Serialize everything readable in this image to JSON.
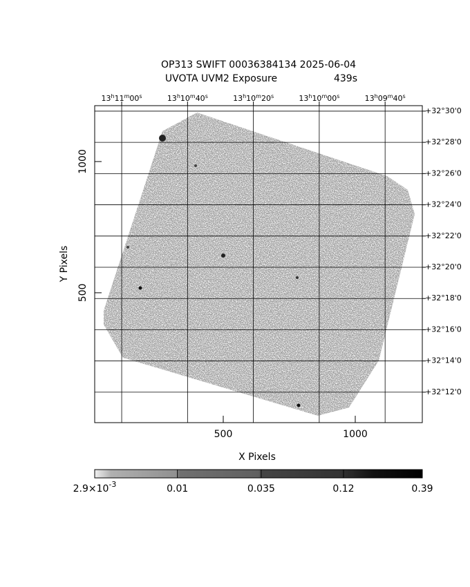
{
  "chart_data": {
    "type": "image",
    "title": "OP313 SWIFT 00036384134 2025-06-04",
    "subtitle": "UVOTA UVM2 Exposure",
    "exposure": "439s",
    "xlabel": "X Pixels",
    "ylabel": "Y Pixels",
    "xlim": [
      13,
      1254
    ],
    "xticks": [
      500,
      1000
    ],
    "ylim": [
      5,
      1213
    ],
    "yticks": [
      500,
      1000
    ],
    "x2lim": [
      47468.2,
      47368.7
    ],
    "x2ticks": [
      {
        "value": 47460,
        "label": "13h11m00s"
      },
      {
        "value": 47440,
        "label": "13h10m40s"
      },
      {
        "value": 47420,
        "label": "13h10m20s"
      },
      {
        "value": 47400,
        "label": "13h10m00s"
      },
      {
        "value": 47380,
        "label": "13h09m40s"
      }
    ],
    "y2lim": [
      1930.05,
      1950.35
    ],
    "y2ticks": [
      {
        "value": 1950,
        "label": "+32°30'0"
      },
      {
        "value": 1948,
        "label": "+32°28'0"
      },
      {
        "value": 1946,
        "label": "+32°26'0"
      },
      {
        "value": 1944,
        "label": "+32°24'0"
      },
      {
        "value": 1942,
        "label": "+32°22'0"
      },
      {
        "value": 1940,
        "label": "+32°20'0"
      },
      {
        "value": 1938,
        "label": "+32°18'0"
      },
      {
        "value": 1936,
        "label": "+32°16'0"
      },
      {
        "value": 1934,
        "label": "+32°14'0"
      },
      {
        "value": 1932,
        "label": "+32°12'0"
      }
    ],
    "grid": true,
    "colorbar": {
      "scale": "log",
      "lim": [
        0.0029,
        0.39
      ],
      "ticks": [
        {
          "value": 0.0029,
          "label": "2.9×10-3"
        },
        0.01,
        0.035,
        0.12,
        0.39
      ]
    }
  }
}
